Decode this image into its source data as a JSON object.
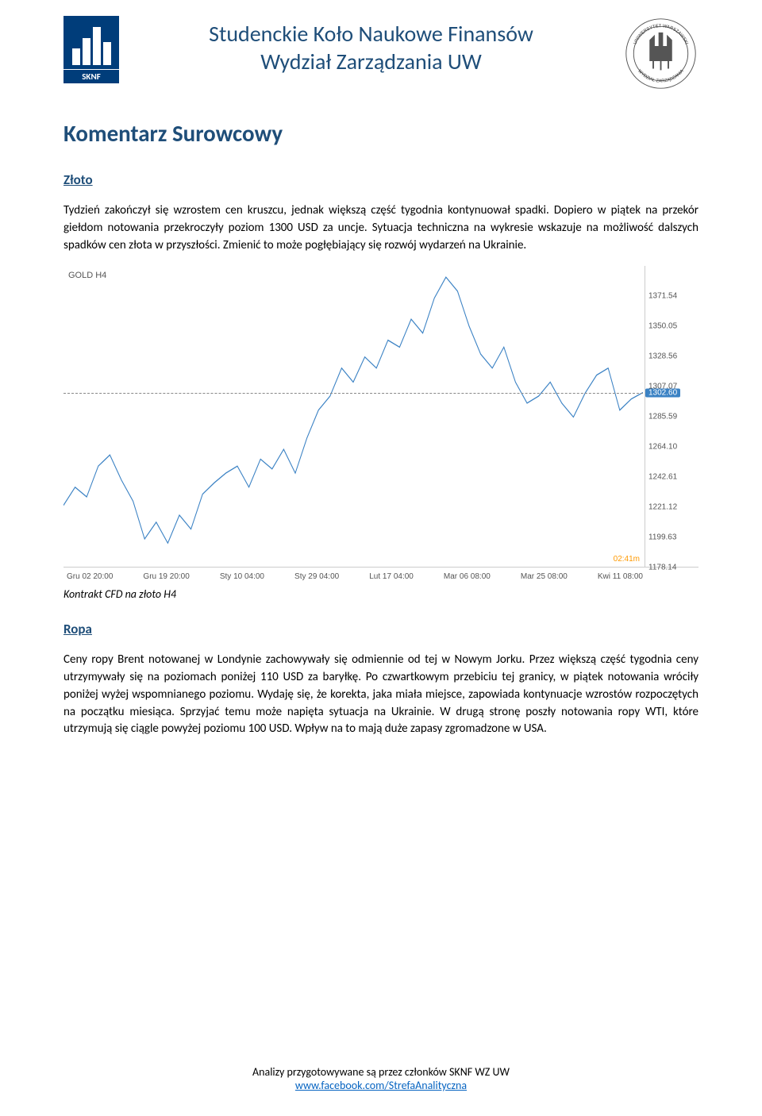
{
  "header": {
    "logo_left_label": "SKNF",
    "title_line1": "Studenckie Koło Naukowe Finansów",
    "title_line2": "Wydział Zarządzania UW",
    "logo_right_text_top": "UNIWERSYTET WARSZAWSKI",
    "logo_right_text_bottom": "WYDZIAŁ ZARZĄDZANIA"
  },
  "main_title": "Komentarz Surowcowy",
  "sections": {
    "zloto": {
      "title": "Złoto",
      "body": "Tydzień zakończył się wzrostem cen kruszcu, jednak większą część tygodnia kontynuował spadki. Dopiero w piątek na przekór giełdom notowania przekroczyły poziom 1300 USD za uncje. Sytuacja techniczna na wykresie wskazuje na możliwość dalszych spadków cen złota w przyszłości. Zmienić to może pogłębiający się rozwój wydarzeń na Ukrainie."
    },
    "ropa": {
      "title": "Ropa",
      "body": "Ceny ropy Brent notowanej w Londynie zachowywały się odmiennie od tej w Nowym Jorku. Przez większą część tygodnia ceny utrzymywały się na poziomach poniżej 110 USD za baryłkę. Po czwartkowym przebiciu tej granicy, w piątek notowania wróciły poniżej wyżej wspomnianego poziomu. Wydaję się, że korekta, jaka miała miejsce, zapowiada kontynuacje wzrostów rozpoczętych na początku miesiąca. Sprzyjać temu może napięta sytuacja na Ukrainie. W drugą stronę poszły notowania ropy WTI, które utrzymują się ciągle powyżej poziomu 100 USD. Wpływ na to mają duże zapasy zgromadzone w USA."
    }
  },
  "chart": {
    "type": "line",
    "title": "GOLD H4",
    "caption": "Kontrakt CFD na złoto H4",
    "line_color": "#3b82c4",
    "hline_color": "#888888",
    "grid_color": "#cccccc",
    "background_color": "#ffffff",
    "text_color": "#555555",
    "volume_label": "02:41m",
    "volume_color": "#ff9900",
    "current_price": "1302.60",
    "ref_price": "1307.07",
    "ylim": [
      1178.14,
      1393.03
    ],
    "yticks": [
      {
        "value": 1371.54,
        "label": "1371.54"
      },
      {
        "value": 1350.05,
        "label": "1350.05"
      },
      {
        "value": 1328.56,
        "label": "1328.56"
      },
      {
        "value": 1307.07,
        "label": "1307.07"
      },
      {
        "value": 1302.6,
        "label": "1302.60"
      },
      {
        "value": 1285.59,
        "label": "1285.59"
      },
      {
        "value": 1264.1,
        "label": "1264.10"
      },
      {
        "value": 1242.61,
        "label": "1242.61"
      },
      {
        "value": 1221.12,
        "label": "1221.12"
      },
      {
        "value": 1199.63,
        "label": "1199.63"
      },
      {
        "value": 1178.14,
        "label": "1178.14"
      }
    ],
    "xticks": [
      "Gru 02 20:00",
      "Gru 19 20:00",
      "Sty 10 04:00",
      "Sty 29 04:00",
      "Lut 17 04:00",
      "Mar 06 08:00",
      "Mar 25 08:00",
      "Kwi 11 08:00"
    ],
    "series": [
      {
        "x": 0.0,
        "y": 1222
      },
      {
        "x": 0.02,
        "y": 1235
      },
      {
        "x": 0.04,
        "y": 1228
      },
      {
        "x": 0.06,
        "y": 1250
      },
      {
        "x": 0.08,
        "y": 1258
      },
      {
        "x": 0.1,
        "y": 1240
      },
      {
        "x": 0.12,
        "y": 1225
      },
      {
        "x": 0.14,
        "y": 1198
      },
      {
        "x": 0.16,
        "y": 1210
      },
      {
        "x": 0.18,
        "y": 1195
      },
      {
        "x": 0.2,
        "y": 1215
      },
      {
        "x": 0.22,
        "y": 1205
      },
      {
        "x": 0.24,
        "y": 1230
      },
      {
        "x": 0.26,
        "y": 1238
      },
      {
        "x": 0.28,
        "y": 1245
      },
      {
        "x": 0.3,
        "y": 1250
      },
      {
        "x": 0.32,
        "y": 1235
      },
      {
        "x": 0.34,
        "y": 1255
      },
      {
        "x": 0.36,
        "y": 1248
      },
      {
        "x": 0.38,
        "y": 1262
      },
      {
        "x": 0.4,
        "y": 1245
      },
      {
        "x": 0.42,
        "y": 1270
      },
      {
        "x": 0.44,
        "y": 1290
      },
      {
        "x": 0.46,
        "y": 1300
      },
      {
        "x": 0.48,
        "y": 1320
      },
      {
        "x": 0.5,
        "y": 1310
      },
      {
        "x": 0.52,
        "y": 1328
      },
      {
        "x": 0.54,
        "y": 1320
      },
      {
        "x": 0.56,
        "y": 1340
      },
      {
        "x": 0.58,
        "y": 1335
      },
      {
        "x": 0.6,
        "y": 1355
      },
      {
        "x": 0.62,
        "y": 1345
      },
      {
        "x": 0.64,
        "y": 1370
      },
      {
        "x": 0.66,
        "y": 1385
      },
      {
        "x": 0.68,
        "y": 1375
      },
      {
        "x": 0.7,
        "y": 1350
      },
      {
        "x": 0.72,
        "y": 1330
      },
      {
        "x": 0.74,
        "y": 1320
      },
      {
        "x": 0.76,
        "y": 1335
      },
      {
        "x": 0.78,
        "y": 1310
      },
      {
        "x": 0.8,
        "y": 1295
      },
      {
        "x": 0.82,
        "y": 1300
      },
      {
        "x": 0.84,
        "y": 1310
      },
      {
        "x": 0.86,
        "y": 1295
      },
      {
        "x": 0.88,
        "y": 1285
      },
      {
        "x": 0.9,
        "y": 1302
      },
      {
        "x": 0.92,
        "y": 1315
      },
      {
        "x": 0.94,
        "y": 1320
      },
      {
        "x": 0.96,
        "y": 1290
      },
      {
        "x": 0.98,
        "y": 1298
      },
      {
        "x": 1.0,
        "y": 1302.6
      }
    ]
  },
  "footer": {
    "line1": "Analizy przygotowywane są przez członków SKNF WZ UW",
    "link": "www.facebook.com/StrefaAnalityczna"
  },
  "colors": {
    "heading": "#1f4e79",
    "body": "#000000",
    "link": "#0563c1",
    "logo_bg": "#003d7a"
  }
}
